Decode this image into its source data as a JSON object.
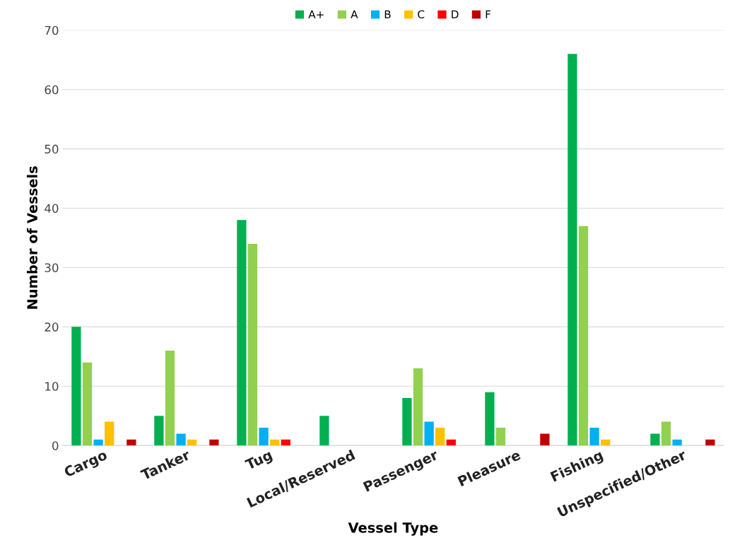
{
  "chart_data": {
    "type": "bar",
    "xlabel": "Vessel Type",
    "ylabel": "Number of Vessels",
    "categories": [
      "Cargo",
      "Tanker",
      "Tug",
      "Local/Reserved",
      "Passenger",
      "Pleasure",
      "Fishing",
      "Unspecified/Other"
    ],
    "series": [
      {
        "name": "A+",
        "color": "#00b050",
        "values": [
          20,
          5,
          38,
          5,
          8,
          9,
          66,
          2
        ]
      },
      {
        "name": "A",
        "color": "#92d050",
        "values": [
          14,
          16,
          34,
          0,
          13,
          3,
          37,
          4
        ]
      },
      {
        "name": "B",
        "color": "#00b0f0",
        "values": [
          1,
          2,
          3,
          0,
          4,
          0,
          3,
          1
        ]
      },
      {
        "name": "C",
        "color": "#ffc000",
        "values": [
          4,
          1,
          1,
          0,
          3,
          0,
          1,
          0
        ]
      },
      {
        "name": "D",
        "color": "#ff0000",
        "values": [
          0,
          0,
          1,
          0,
          1,
          0,
          0,
          0
        ]
      },
      {
        "name": "F",
        "color": "#c00000",
        "values": [
          1,
          1,
          0,
          0,
          0,
          2,
          0,
          1
        ]
      }
    ],
    "ylim": [
      0,
      70
    ],
    "yticks": [
      0,
      10,
      20,
      30,
      40,
      50,
      60,
      70
    ],
    "grid": "y",
    "legend": "top"
  }
}
